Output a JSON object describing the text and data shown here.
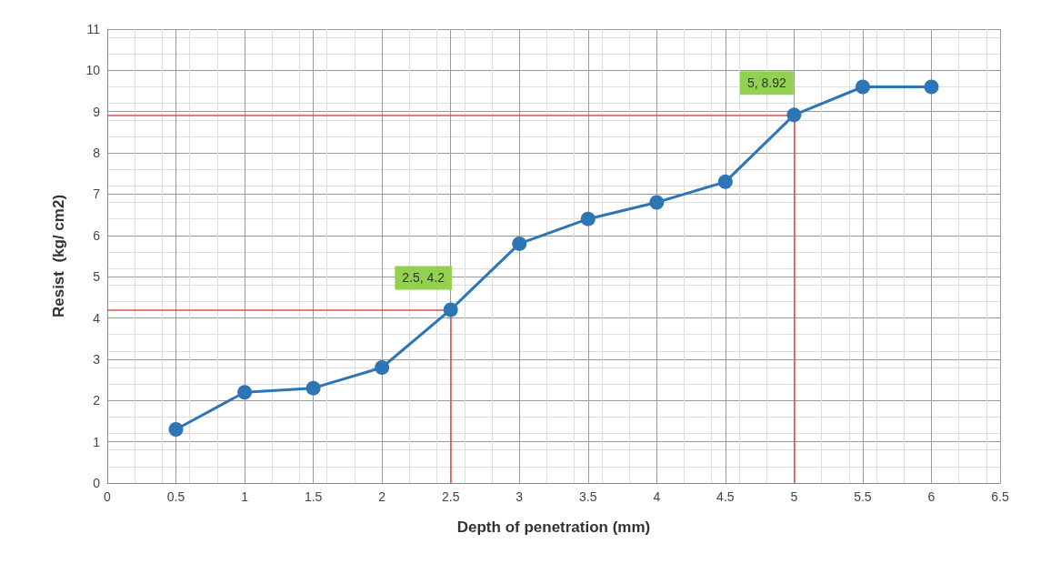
{
  "chart_data": {
    "type": "line",
    "xlabel": "Depth of penetration (mm)",
    "ylabel": "Resist  (kg/ cm2)",
    "x": [
      0.5,
      1,
      1.5,
      2,
      2.5,
      3,
      3.5,
      4,
      4.5,
      5,
      5.5,
      6
    ],
    "series": [
      {
        "color": "#2e75b6",
        "values": [
          1.3,
          2.2,
          2.3,
          2.8,
          4.2,
          5.8,
          6.4,
          6.8,
          7.3,
          8.92,
          9.6,
          9.6
        ]
      }
    ],
    "xlim": [
      0,
      6.5
    ],
    "xticks": [
      0,
      0.5,
      1,
      1.5,
      2,
      2.5,
      3,
      3.5,
      4,
      4.5,
      5,
      5.5,
      6,
      6.5
    ],
    "ylim": [
      0,
      11
    ],
    "yticks": [
      0,
      1,
      2,
      3,
      4,
      5,
      6,
      7,
      8,
      9,
      10,
      11
    ],
    "annotations": [
      {
        "text": "2.5, 4.2",
        "x": 2.5,
        "y": 4.2
      },
      {
        "text": "5, 8.92",
        "x": 5,
        "y": 8.92
      }
    ],
    "ref_lines": [
      {
        "axis": "y",
        "value": 4.2,
        "color": "#e05050"
      },
      {
        "axis": "y",
        "value": 8.92,
        "color": "#e05050"
      },
      {
        "axis": "x",
        "value": 2.5,
        "color": "#e05050"
      },
      {
        "axis": "x",
        "value": 5,
        "color": "#e05050"
      }
    ],
    "grid": true,
    "marker": "circle",
    "line_style": "solid"
  }
}
